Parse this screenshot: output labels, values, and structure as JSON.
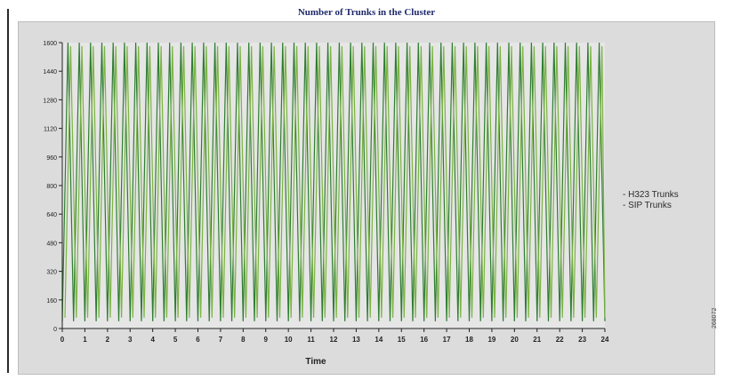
{
  "chart_data": {
    "type": "line",
    "title": "Number of Trunks in the Cluster",
    "xlabel": "Time",
    "ylabel": "",
    "x_ticks": [
      "0",
      "1",
      "2",
      "3",
      "4",
      "5",
      "6",
      "7",
      "8",
      "9",
      "10",
      "11",
      "12",
      "13",
      "14",
      "15",
      "16",
      "17",
      "18",
      "19",
      "20",
      "21",
      "22",
      "23",
      "24"
    ],
    "y_ticks": [
      "0",
      "160",
      "320",
      "480",
      "640",
      "800",
      "960",
      "1120",
      "1280",
      "1440",
      "1600"
    ],
    "xlim": [
      0,
      24
    ],
    "ylim": [
      0,
      1600
    ],
    "grid": false,
    "legend_position": "right",
    "series": [
      {
        "name": "H323 Trunks",
        "color": "#2e7d32",
        "peaks_per_hour": 2,
        "peak_value": 1600,
        "trough_value": 40
      },
      {
        "name": "SIP Trunks",
        "color": "#7cb342",
        "peaks_per_hour": 2,
        "peak_value": 1580,
        "trough_value": 60
      }
    ]
  },
  "figure_id": "268072"
}
